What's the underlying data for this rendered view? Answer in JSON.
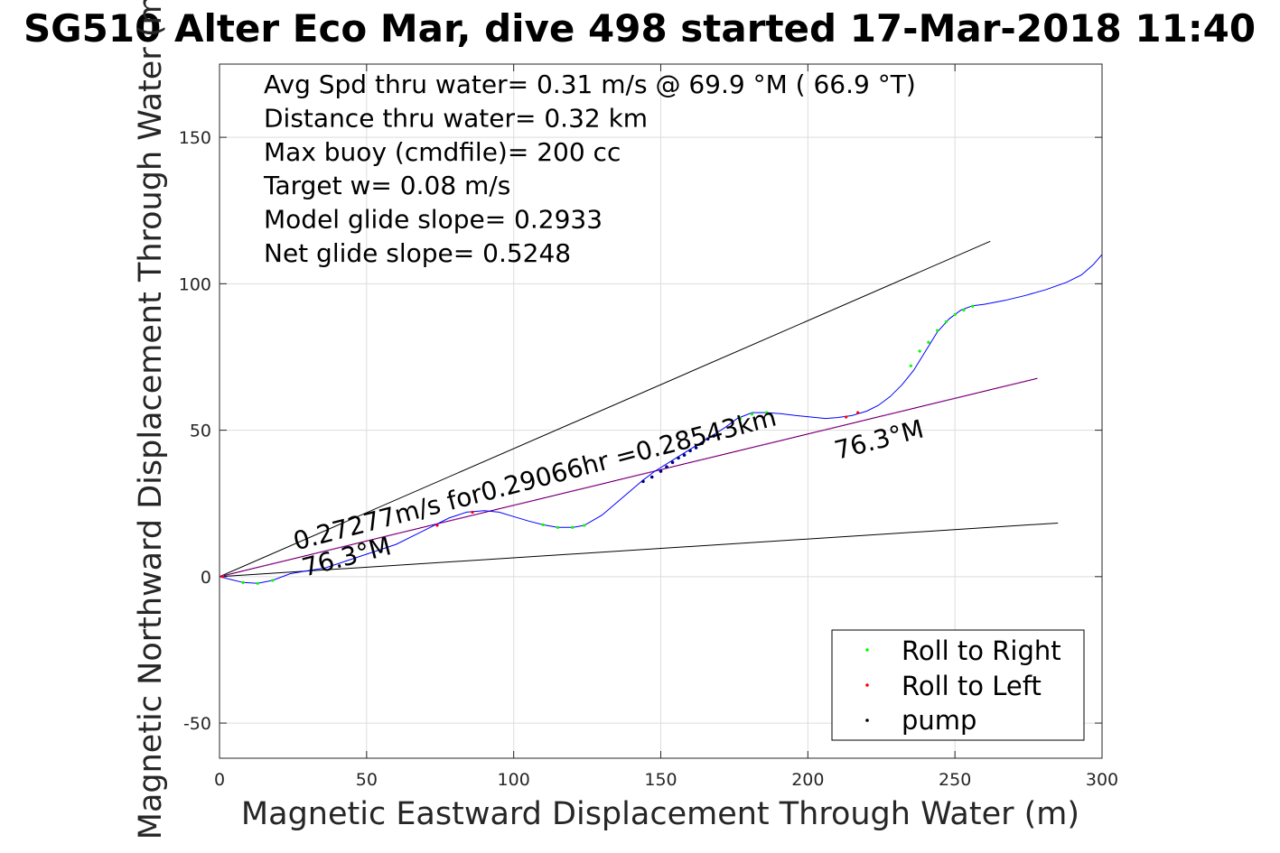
{
  "chart_data": {
    "type": "line",
    "title": "SG510 Alter Eco Mar, dive 498 started 17-Mar-2018 11:40",
    "xlabel": "Magnetic Eastward Displacement Through Water (m)",
    "ylabel": "Magnetic Northward Displacement Through Water (m)",
    "xlim": [
      0,
      300
    ],
    "ylim": [
      -62,
      175
    ],
    "xticks": [
      0,
      50,
      100,
      150,
      200,
      250,
      300
    ],
    "yticks": [
      -50,
      0,
      50,
      100,
      150
    ],
    "grid": true,
    "legend_position": "bottom-right",
    "info_text": [
      "Avg Spd thru water=  0.31 m/s @  69.9 °M ( 66.9 °T)",
      "Distance thru water=  0.32 km",
      "Max buoy (cmdfile)= 200 cc",
      "Target w= 0.08 m/s",
      "Model glide slope= 0.2933",
      "Net glide slope= 0.5248"
    ],
    "annotations": [
      {
        "text": "0.27277m/s for0.29066hr =0.28543km",
        "x": 26,
        "y": 9,
        "rotation_deg": -14.6
      },
      {
        "text": "76.3°M",
        "x": 29,
        "y": 0,
        "rotation_deg": -14.6
      },
      {
        "text": "76.3°M",
        "x": 210,
        "y": 40,
        "rotation_deg": -14.6
      }
    ],
    "track": {
      "name": "track",
      "color": "#0000ff",
      "x": [
        0,
        4,
        8,
        13,
        18,
        24,
        30,
        36,
        42,
        48,
        54,
        60,
        66,
        72,
        78,
        84,
        90,
        95,
        100,
        105,
        110,
        115,
        120,
        124,
        130,
        137,
        144,
        148,
        152,
        156,
        160,
        164,
        168,
        172,
        176,
        181,
        186,
        191,
        196,
        201,
        206,
        210,
        215,
        220,
        224,
        228,
        232,
        236,
        240,
        244,
        248,
        252,
        256,
        260,
        267,
        274,
        281,
        288,
        293,
        297,
        300
      ],
      "y": [
        0,
        -1,
        -2,
        -2.3,
        -1.3,
        1,
        2,
        3,
        5,
        7,
        9,
        11,
        14,
        17,
        20,
        22,
        22.5,
        22,
        20.5,
        19,
        17.7,
        16.8,
        16.8,
        17.5,
        21,
        27,
        33,
        36,
        38.5,
        41,
        43.5,
        46,
        48.5,
        51,
        54,
        56,
        56,
        55.6,
        55,
        54.5,
        54,
        54.3,
        55,
        56.5,
        58.5,
        61.5,
        65.5,
        70.5,
        77,
        83.5,
        88,
        91,
        92.5,
        93,
        94.3,
        96,
        98,
        100.5,
        103,
        106.5,
        110
      ]
    },
    "lines": [
      {
        "name": "upper bound",
        "color": "#000000",
        "x": [
          0,
          262
        ],
        "y": [
          0,
          114.5
        ]
      },
      {
        "name": "lower bound",
        "color": "#000000",
        "x": [
          0,
          285
        ],
        "y": [
          0,
          18.3
        ]
      },
      {
        "name": "heading",
        "color": "#000000",
        "x": [
          0,
          278
        ],
        "y": [
          0,
          67.7
        ]
      },
      {
        "name": "heading dots",
        "color": "#ff00ff",
        "x": [
          0,
          278
        ],
        "y": [
          0,
          67.7
        ],
        "dashed": true
      }
    ],
    "series": [
      {
        "name": "Roll to Right",
        "color": "#00ff00",
        "x": [
          8,
          13,
          18,
          110,
          115,
          120,
          124,
          177,
          181,
          186,
          235,
          238,
          241,
          244,
          247,
          250,
          253,
          256
        ],
        "y": [
          -2,
          -2.3,
          -1.3,
          17.7,
          16.8,
          16.8,
          17.5,
          54,
          55.5,
          56,
          72,
          77,
          80,
          84,
          87,
          89.5,
          91,
          92.3
        ]
      },
      {
        "name": "Roll to Left",
        "color": "#ff0000",
        "x": [
          1,
          74,
          86,
          213,
          217
        ],
        "y": [
          0,
          17.5,
          22,
          54.5,
          56
        ]
      },
      {
        "name": "pump",
        "color": "#000080",
        "x": [
          144,
          147,
          150,
          152,
          154,
          156,
          158,
          160,
          162,
          164,
          166,
          168
        ],
        "y": [
          32.5,
          34,
          36,
          37.5,
          39,
          40.5,
          41.5,
          43,
          44,
          45.5,
          47,
          48
        ]
      }
    ]
  }
}
